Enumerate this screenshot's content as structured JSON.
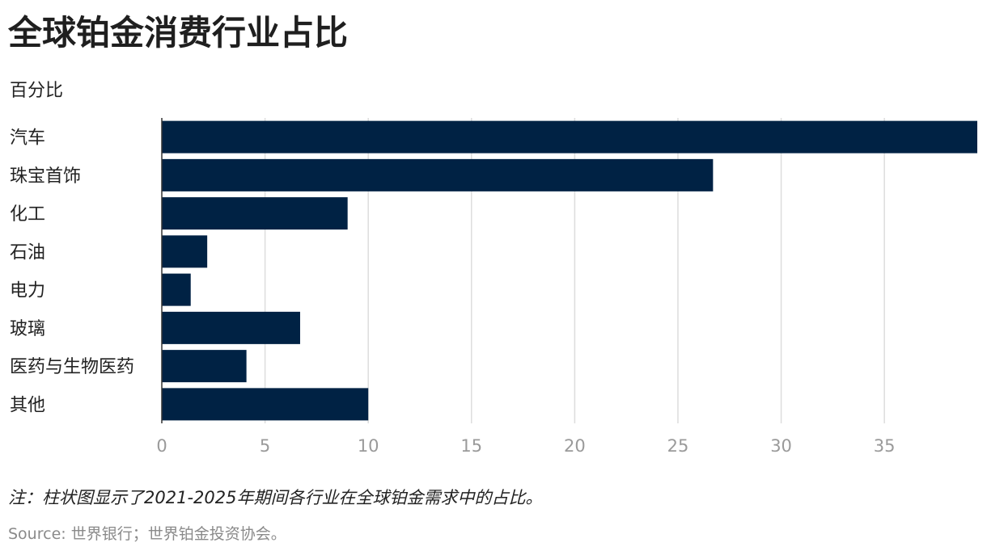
{
  "chart_data": {
    "type": "bar",
    "orientation": "horizontal",
    "title": "全球铂金消费行业占比",
    "subtitle": "百分比",
    "categories": [
      "汽车",
      "珠宝首饰",
      "化工",
      "石油",
      "电力",
      "玻璃",
      "医药与生物医药",
      "其他"
    ],
    "values": [
      39.5,
      26.7,
      9.0,
      2.2,
      1.4,
      6.7,
      4.1,
      10.0
    ],
    "xlim": [
      0,
      39.5
    ],
    "xticks": [
      0,
      5,
      10,
      15,
      20,
      25,
      30,
      35
    ],
    "grid": true,
    "bar_color": "#002244",
    "note": "注：柱状图显示了2021-2025年期间各行业在全球铂金需求中的占比。",
    "source": "Source: 世界银行；世界铂金投资协会。"
  }
}
